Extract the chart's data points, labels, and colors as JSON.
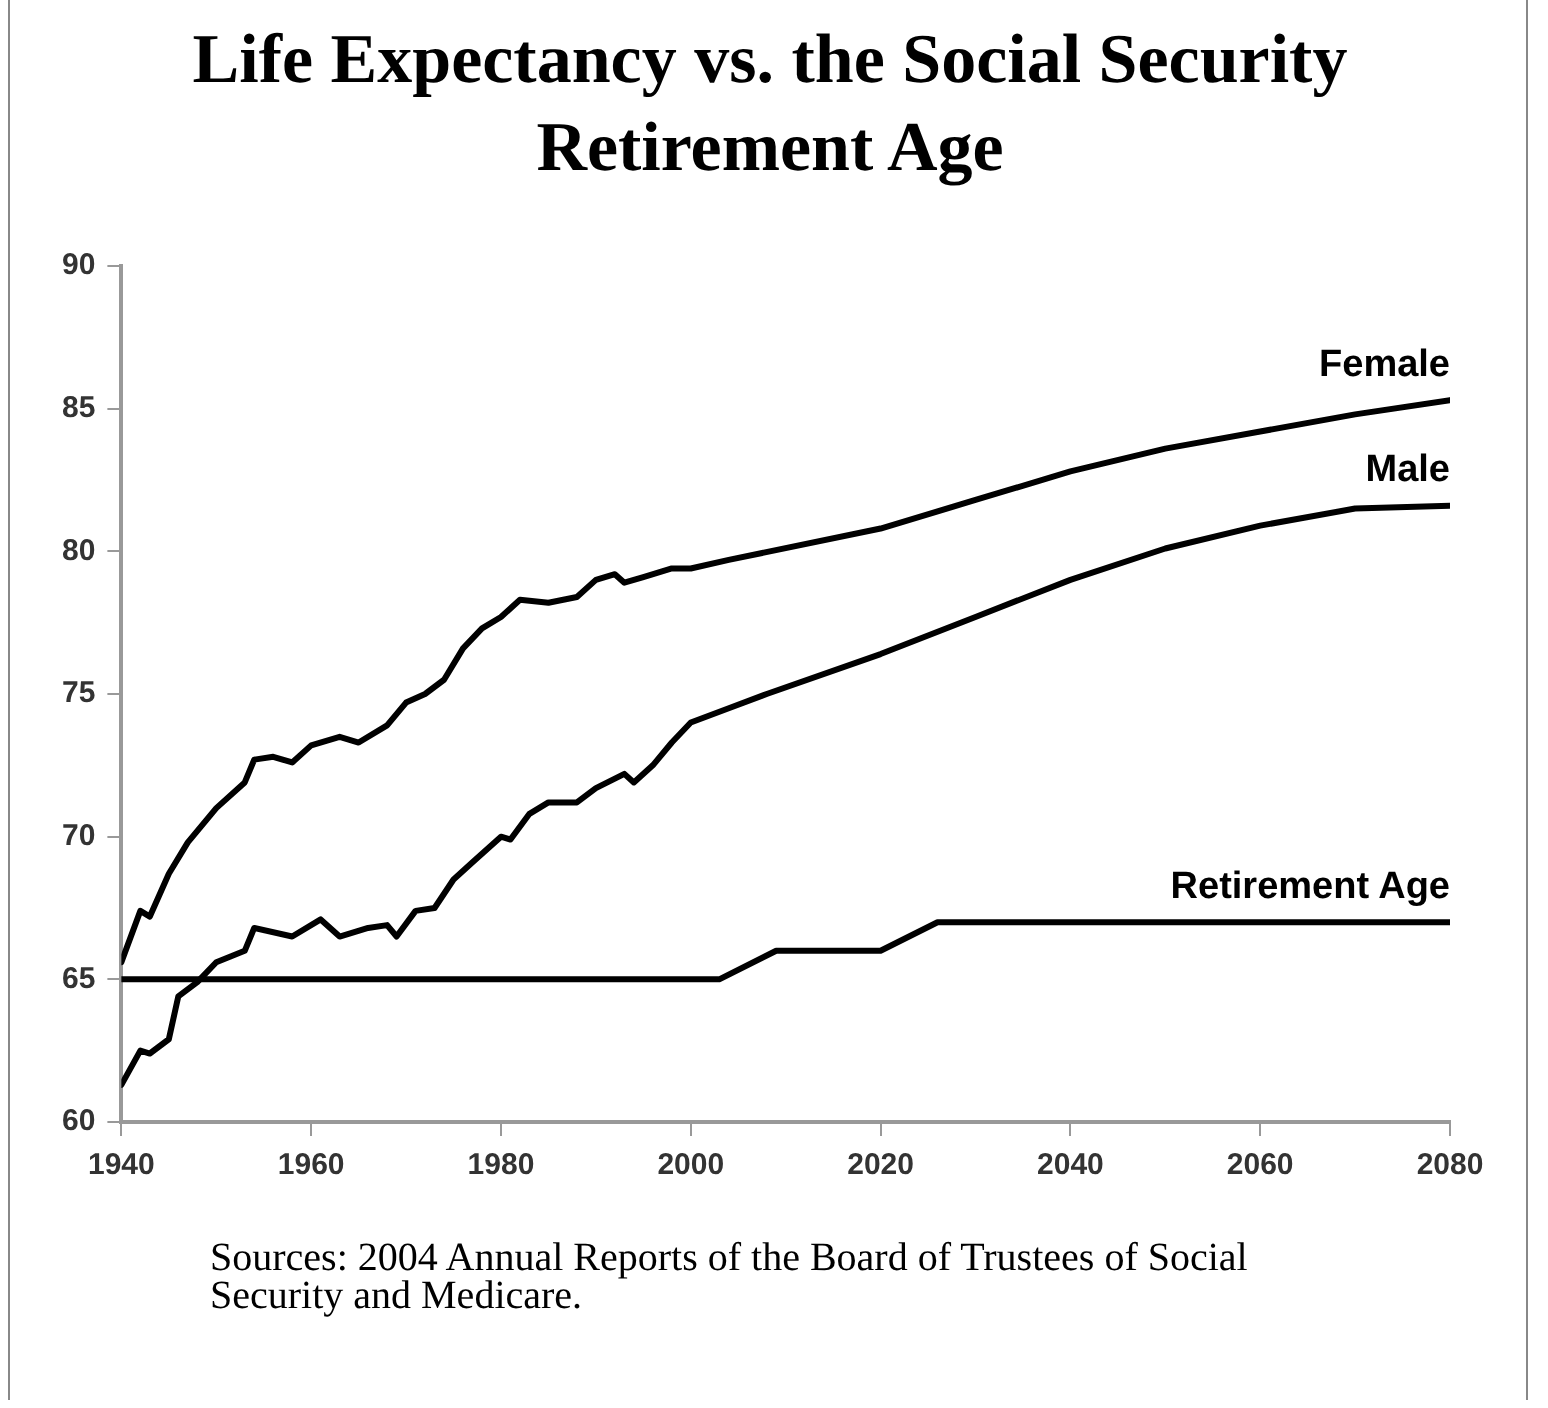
{
  "chart_data": {
    "type": "line",
    "title": "Life Expectancy vs. the Social Security Retirement Age",
    "annotations": [
      "Sources: 2004 Annual Reports of the Board of Trustees of Social Security and Medicare."
    ],
    "xlim": [
      1940,
      2080
    ],
    "xticks": [
      1940,
      1960,
      1980,
      2000,
      2020,
      2040,
      2060,
      2080
    ],
    "ylim": [
      60,
      90
    ],
    "yticks": [
      60,
      65,
      70,
      75,
      80,
      85,
      90
    ],
    "grid": false,
    "legend": false,
    "marker": "none",
    "line_style": "solid",
    "series": [
      {
        "name": "Female",
        "color": "#000000",
        "x": [
          1940,
          1942,
          1943,
          1945,
          1947,
          1950,
          1953,
          1954,
          1956,
          1958,
          1960,
          1963,
          1965,
          1968,
          1970,
          1972,
          1974,
          1976,
          1978,
          1980,
          1982,
          1985,
          1988,
          1990,
          1992,
          1993,
          1995,
          1998,
          2000,
          2004,
          2020,
          2030,
          2040,
          2050,
          2060,
          2070,
          2080
        ],
        "values": [
          65.6,
          67.4,
          67.2,
          68.7,
          69.8,
          71.0,
          71.9,
          72.7,
          72.8,
          72.6,
          73.2,
          73.5,
          73.3,
          73.9,
          74.7,
          75.0,
          75.5,
          76.6,
          77.3,
          77.7,
          78.3,
          78.2,
          78.4,
          79.0,
          79.2,
          78.9,
          79.1,
          79.4,
          79.4,
          79.7,
          80.8,
          81.8,
          82.8,
          83.6,
          84.2,
          84.8,
          85.3
        ]
      },
      {
        "name": "Male",
        "color": "#000000",
        "x": [
          1940,
          1942,
          1943,
          1945,
          1946,
          1948,
          1950,
          1953,
          1954,
          1958,
          1961,
          1963,
          1966,
          1968,
          1969,
          1971,
          1973,
          1975,
          1977,
          1980,
          1981,
          1983,
          1985,
          1988,
          1990,
          1993,
          1994,
          1996,
          1998,
          2000,
          2004,
          2008,
          2020,
          2030,
          2040,
          2050,
          2060,
          2070,
          2080
        ],
        "values": [
          61.3,
          62.5,
          62.4,
          62.9,
          64.4,
          64.9,
          65.6,
          66.0,
          66.8,
          66.5,
          67.1,
          66.5,
          66.8,
          66.9,
          66.5,
          67.4,
          67.5,
          68.5,
          69.1,
          70.0,
          69.9,
          70.8,
          71.2,
          71.2,
          71.7,
          72.2,
          71.9,
          72.5,
          73.3,
          74.0,
          74.5,
          75.0,
          76.4,
          77.7,
          79.0,
          80.1,
          80.9,
          81.5,
          81.6
        ]
      },
      {
        "name": "Retirement Age",
        "color": "#000000",
        "x": [
          1940,
          2003,
          2009,
          2020,
          2026,
          2080
        ],
        "values": [
          65,
          65,
          66,
          66,
          67,
          67
        ]
      }
    ]
  }
}
